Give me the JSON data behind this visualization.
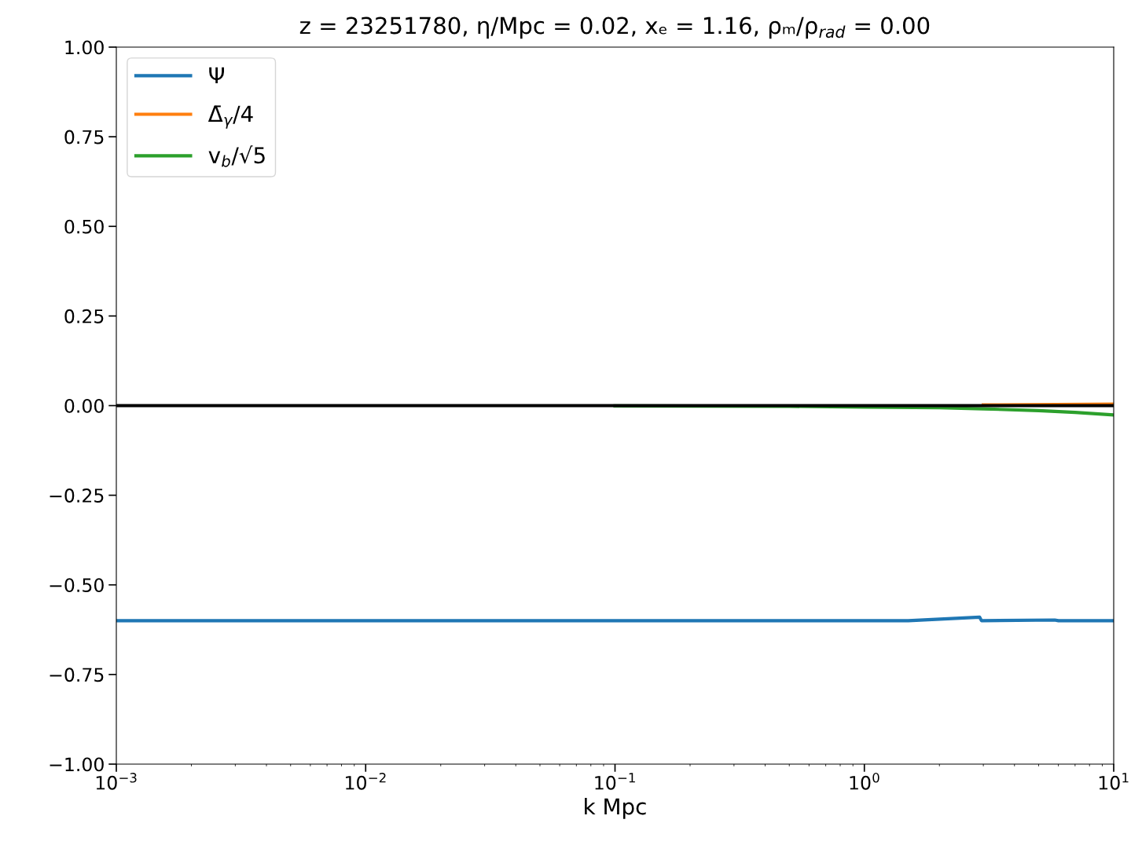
{
  "chart_data": {
    "type": "line",
    "title": "z = 23251780, η/Mpc = 0.02, xₑ = 1.16, ρₘ/ρ$_{rad}$ = 0.00",
    "xlabel": "k Mpc",
    "log": "x",
    "xlim": [
      0.001,
      10
    ],
    "xticks": [
      {
        "value": 0.001,
        "label": "10$^{−3}$"
      },
      {
        "value": 0.01,
        "label": "10$^{−2}$"
      },
      {
        "value": 0.1,
        "label": "10$^{−1}$"
      },
      {
        "value": 1,
        "label": "10$^{0}$"
      },
      {
        "value": 10,
        "label": "10$^{1}$"
      }
    ],
    "ylim": [
      -1,
      1
    ],
    "yticks": [
      {
        "value": -1,
        "label": "−1.00"
      },
      {
        "value": -0.75,
        "label": "−0.75"
      },
      {
        "value": -0.5,
        "label": "−0.50"
      },
      {
        "value": -0.25,
        "label": "−0.25"
      },
      {
        "value": 0,
        "label": "0.00"
      },
      {
        "value": 0.25,
        "label": "0.25"
      },
      {
        "value": 0.5,
        "label": "0.50"
      },
      {
        "value": 0.75,
        "label": "0.75"
      },
      {
        "value": 1,
        "label": "1.00"
      }
    ],
    "grid": false,
    "legend": "top left",
    "marker": "none",
    "line_style": "solid",
    "ref_lines": [
      {
        "axis": "y",
        "value": 0,
        "label": null,
        "color": "#000000"
      }
    ],
    "series": [
      {
        "name": "Ψ",
        "color": "#1f77b4",
        "x": [
          0.001,
          0.01,
          0.1,
          1,
          1.5,
          2.9,
          2.95,
          5.8,
          6.0,
          10
        ],
        "values": [
          -0.6,
          -0.6,
          -0.6,
          -0.6,
          -0.6,
          -0.59,
          -0.6,
          -0.598,
          -0.6,
          -0.6
        ]
      },
      {
        "name": "Δ̄$_{γ}$/4",
        "color": "#ff7f0e",
        "x": [
          3,
          10
        ],
        "values": [
          0.002,
          0.004
        ]
      },
      {
        "name": "v$_{b}$/√5",
        "color": "#2ca02c",
        "x": [
          0.1,
          0.5,
          1,
          2,
          3,
          5,
          7,
          10
        ],
        "values": [
          -0.001,
          -0.002,
          -0.004,
          -0.006,
          -0.009,
          -0.014,
          -0.019,
          -0.026
        ]
      }
    ]
  }
}
